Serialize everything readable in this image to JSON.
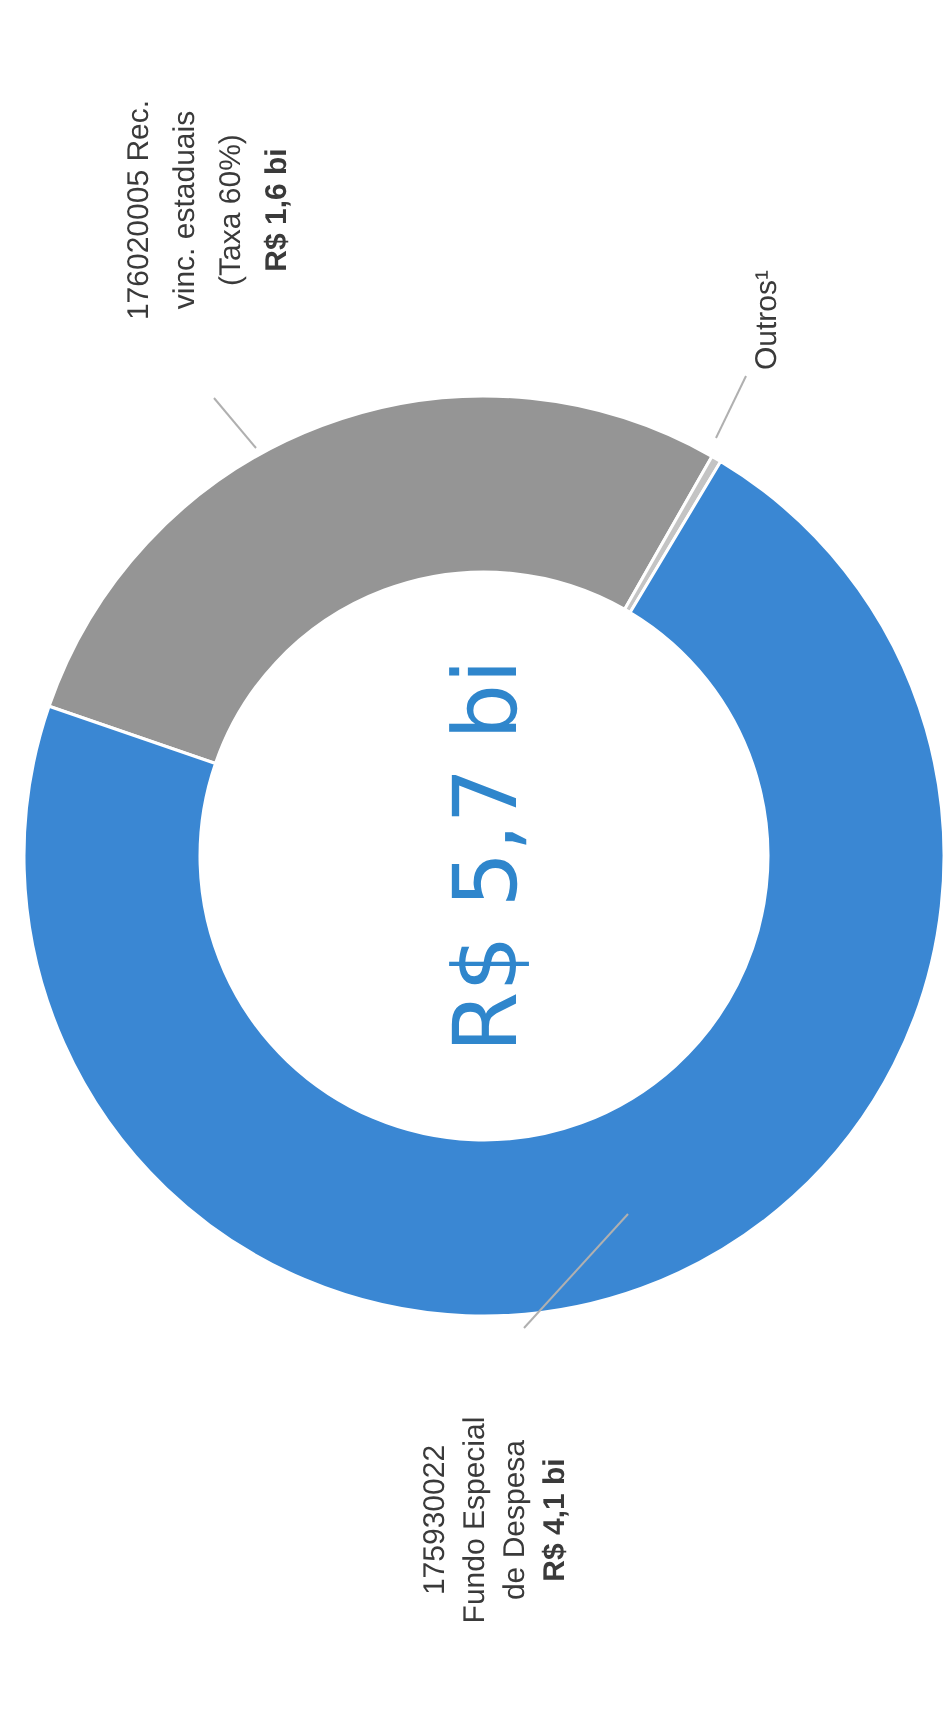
{
  "chart_data": {
    "type": "donut",
    "categories": [
      "176020005  Rec. vinc. estaduais (Taxa 60%)",
      "Outros¹",
      "175930022 Fundo Especial de Despesa"
    ],
    "values": [
      1.6,
      0.02,
      4.1
    ],
    "value_labels": [
      "R$ 1,6 bi",
      null,
      "R$ 4,1 bi"
    ],
    "colors": [
      "#959595",
      "#c4c4c4",
      "#3a87d3"
    ],
    "annotations": [
      "R$ 5,7 bi"
    ]
  }
}
